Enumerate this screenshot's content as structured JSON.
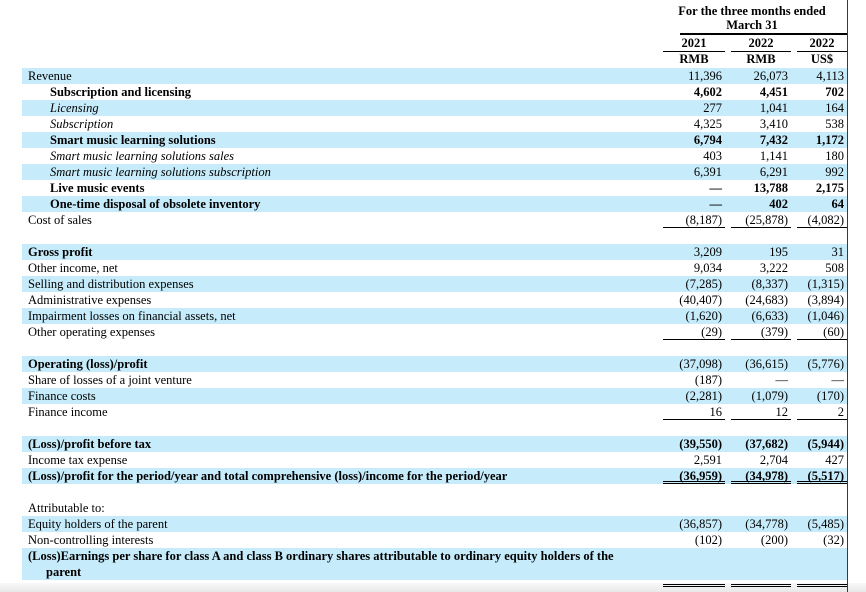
{
  "colors": {
    "stripe": "#c6ebfa",
    "text": "#000000",
    "page_border": "#3a3a3a",
    "footer_strip": "#e8e8e8"
  },
  "table": {
    "header": {
      "period_line1": "For the three months ended",
      "period_line2": "March 31",
      "columns": [
        {
          "year": "2021",
          "currency": "RMB"
        },
        {
          "year": "2022",
          "currency": "RMB"
        },
        {
          "year": "2022",
          "currency": "US$"
        }
      ]
    },
    "rows": [
      {
        "label": "Revenue",
        "blue": true,
        "v": [
          "11,396",
          "26,073",
          "4,113"
        ]
      },
      {
        "label": "Subscription and licensing",
        "bold": true,
        "indent": true,
        "numBold": true,
        "v": [
          "4,602",
          "4,451",
          "702"
        ]
      },
      {
        "label": "Licensing",
        "italic": true,
        "indent": true,
        "blue": true,
        "v": [
          "277",
          "1,041",
          "164"
        ]
      },
      {
        "label": "Subscription",
        "italic": true,
        "indent": true,
        "v": [
          "4,325",
          "3,410",
          "538"
        ]
      },
      {
        "label": "Smart music learning solutions",
        "bold": true,
        "indent": true,
        "blue": true,
        "numBold": true,
        "v": [
          "6,794",
          "7,432",
          "1,172"
        ]
      },
      {
        "label": "Smart music learning solutions sales",
        "italic": true,
        "indent": true,
        "v": [
          "403",
          "1,141",
          "180"
        ]
      },
      {
        "label": "Smart music learning solutions subscription",
        "italic": true,
        "indent": true,
        "blue": true,
        "v": [
          "6,391",
          "6,291",
          "992"
        ]
      },
      {
        "label": "Live music events",
        "bold": true,
        "indent": true,
        "numBold": true,
        "v": [
          "—",
          "13,788",
          "2,175"
        ]
      },
      {
        "label": "One-time disposal of obsolete inventory",
        "bold": true,
        "indent": true,
        "blue": true,
        "numBold": true,
        "v": [
          "—",
          "402",
          "64"
        ]
      },
      {
        "label": "Cost of sales",
        "underline": "single",
        "v": [
          "(8,187)",
          "(25,878)",
          "(4,082)"
        ]
      },
      {
        "spacer": true
      },
      {
        "label": "Gross profit",
        "bold": true,
        "blue": true,
        "v": [
          "3,209",
          "195",
          "31"
        ]
      },
      {
        "label": "Other income, net",
        "v": [
          "9,034",
          "3,222",
          "508"
        ]
      },
      {
        "label": "Selling and distribution expenses",
        "blue": true,
        "v": [
          "(7,285)",
          "(8,337)",
          "(1,315)"
        ]
      },
      {
        "label": "Administrative expenses",
        "v": [
          "(40,407)",
          "(24,683)",
          "(3,894)"
        ]
      },
      {
        "label": "Impairment losses on financial assets, net",
        "blue": true,
        "v": [
          "(1,620)",
          "(6,633)",
          "(1,046)"
        ]
      },
      {
        "label": "Other operating expenses",
        "underline": "single",
        "v": [
          "(29)",
          "(379)",
          "(60)"
        ]
      },
      {
        "spacer": true
      },
      {
        "label": "Operating (loss)/profit",
        "bold": true,
        "blue": true,
        "v": [
          "(37,098)",
          "(36,615)",
          "(5,776)"
        ]
      },
      {
        "label": "Share of losses of a joint venture",
        "v": [
          "(187)",
          "—",
          "—"
        ]
      },
      {
        "label": "Finance costs",
        "blue": true,
        "v": [
          "(2,281)",
          "(1,079)",
          "(170)"
        ]
      },
      {
        "label": "Finance income",
        "underline": "single",
        "v": [
          "16",
          "12",
          "2"
        ]
      },
      {
        "spacer": true
      },
      {
        "label": "(Loss)/profit before tax",
        "bold": true,
        "blue": true,
        "numBold": true,
        "v": [
          "(39,550)",
          "(37,682)",
          "(5,944)"
        ]
      },
      {
        "label": "Income tax expense",
        "v": [
          "2,591",
          "2,704",
          "427"
        ]
      },
      {
        "label": "(Loss)/profit for the period/year and total comprehensive (loss)/income for the period/year",
        "bold": true,
        "blue": true,
        "numBold": true,
        "underline": "double",
        "v": [
          "(36,959)",
          "(34,978)",
          "(5,517)"
        ]
      },
      {
        "spacer": true
      },
      {
        "label": "Attributable to:",
        "v": [
          "",
          "",
          ""
        ]
      },
      {
        "label": "Equity holders of the parent",
        "blue": true,
        "v": [
          "(36,857)",
          "(34,778)",
          "(5,485)"
        ]
      },
      {
        "label": "Non-controlling interests",
        "v": [
          "(102)",
          "(200)",
          "(32)"
        ]
      },
      {
        "label": "(Loss)Earnings per share for class A and class B ordinary shares attributable to ordinary equity holders of the",
        "label2": "parent",
        "bold": true,
        "blue": true,
        "tall": true,
        "v": [
          "",
          "",
          ""
        ]
      },
      {
        "ulrow": true,
        "underline": "double",
        "v": [
          "",
          "",
          ""
        ]
      }
    ]
  }
}
